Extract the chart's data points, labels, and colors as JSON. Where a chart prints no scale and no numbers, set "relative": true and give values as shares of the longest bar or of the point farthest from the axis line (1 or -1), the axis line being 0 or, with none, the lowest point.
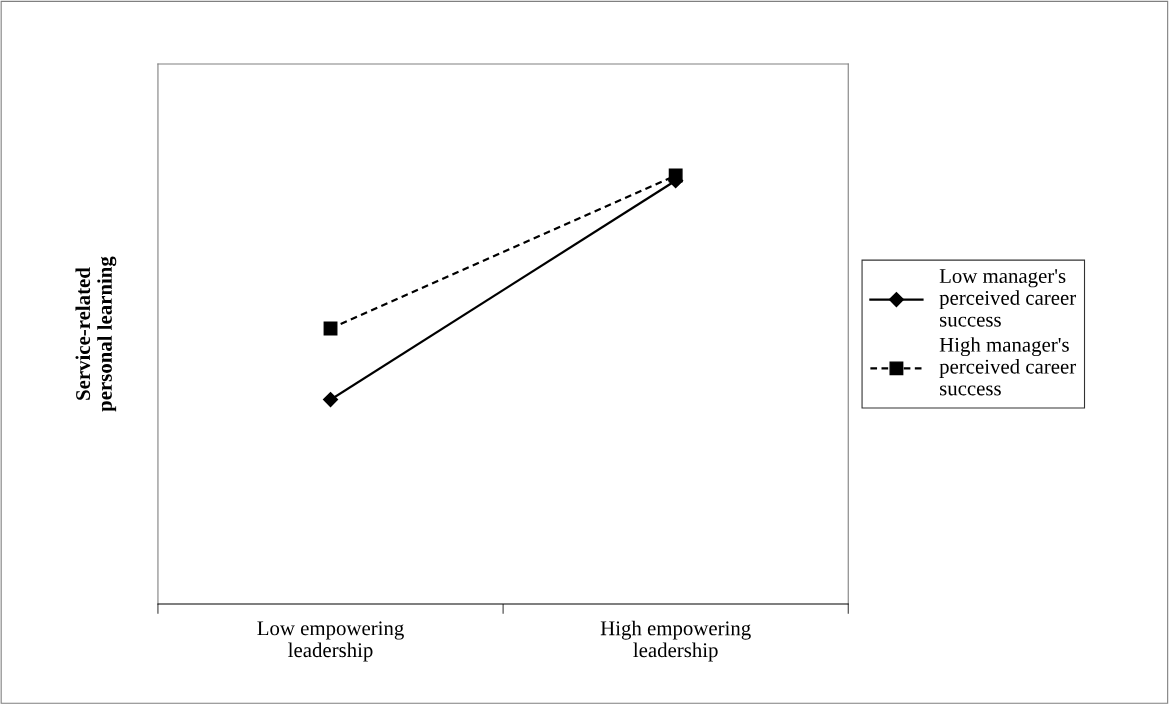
{
  "chart_data": {
    "type": "line",
    "relative": true,
    "ylabel": "Service-related personal learning",
    "categories": [
      "Low empowering leadership",
      "High empowering leadership"
    ],
    "series": [
      {
        "name": "Low manager's perceived career success",
        "color": "#000000",
        "values": [
          0.477,
          0.988
        ],
        "marker": "diamond",
        "line_style": "solid"
      },
      {
        "name": "High manager's perceived career success",
        "color": "#000000",
        "values": [
          0.643,
          1.0
        ],
        "marker": "square",
        "line_style": "dashed"
      }
    ],
    "legend": "right",
    "grid": false
  }
}
